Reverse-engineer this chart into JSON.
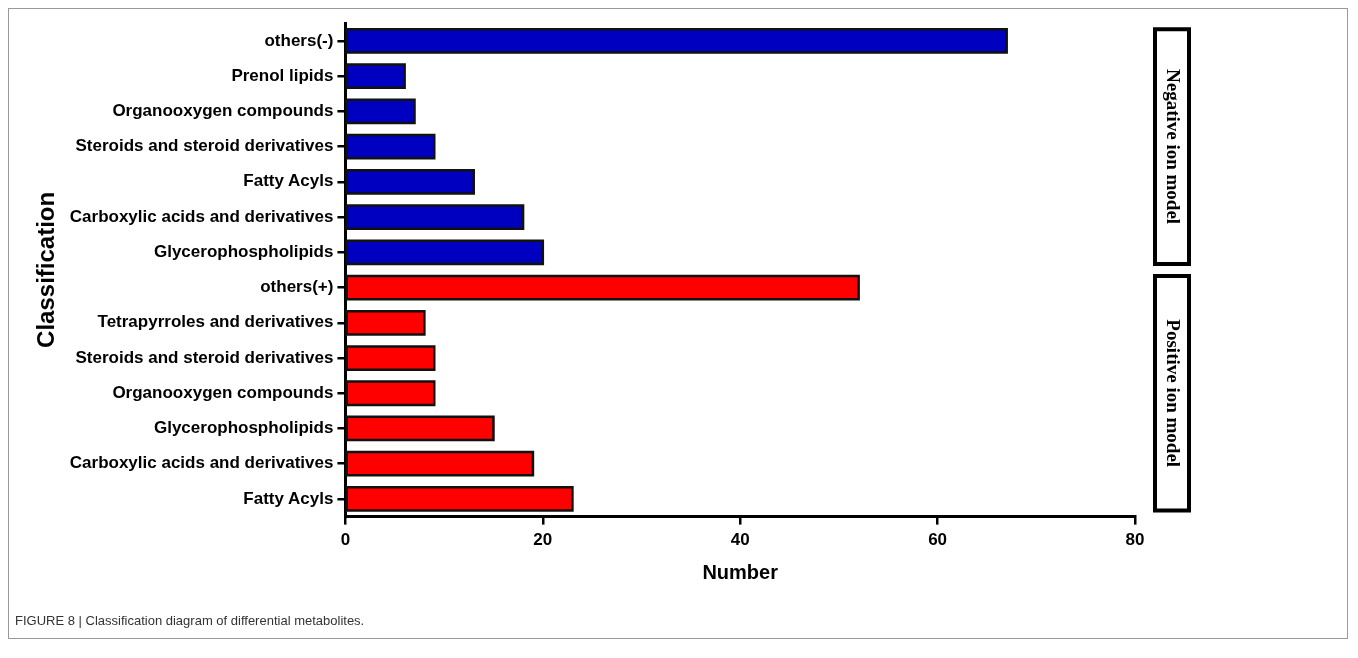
{
  "chart_data": {
    "type": "bar",
    "orientation": "horizontal",
    "xlabel": "Number",
    "ylabel": "Classification",
    "categories": [
      "others(-)",
      "Prenol lipids",
      "Organooxygen compounds",
      "Steroids and steroid derivatives",
      "Fatty Acyls",
      "Carboxylic acids and derivatives",
      "Glycerophospholipids",
      "others(+)",
      "Tetrapyrroles and derivatives",
      "Steroids and steroid derivatives",
      "Organooxygen compounds",
      "Glycerophospholipids",
      "Carboxylic acids and derivatives",
      "Fatty Acyls"
    ],
    "values": [
      67,
      6,
      7,
      9,
      13,
      18,
      20,
      52,
      8,
      9,
      9,
      15,
      19,
      23
    ],
    "colors": [
      "#0000c0",
      "#0000c0",
      "#0000c0",
      "#0000c0",
      "#0000c0",
      "#0000c0",
      "#0000c0",
      "#ff0000",
      "#ff0000",
      "#ff0000",
      "#ff0000",
      "#ff0000",
      "#ff0000",
      "#ff0000"
    ],
    "xlim": [
      0,
      80
    ],
    "xticks": [
      0,
      20,
      40,
      60,
      80
    ],
    "annotations": [
      "Negative ion model",
      "Positive ion model",
      "FIGURE 8 | Classification diagram of differential metabolites."
    ]
  }
}
